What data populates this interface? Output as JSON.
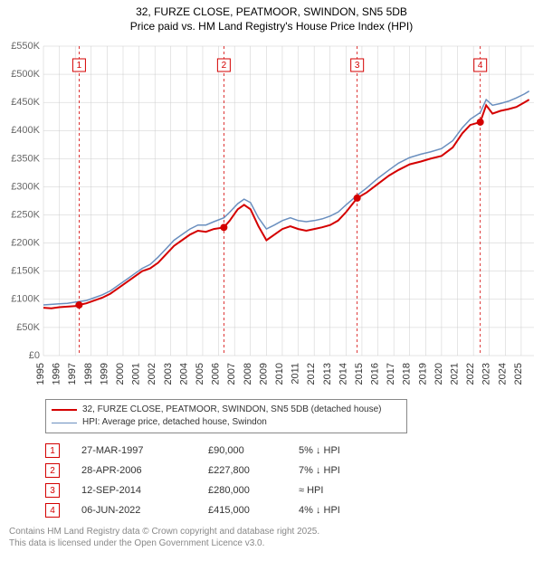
{
  "title_line1": "32, FURZE CLOSE, PEATMOOR, SWINDON, SN5 5DB",
  "title_line2": "Price paid vs. HM Land Registry's House Price Index (HPI)",
  "chart": {
    "type": "line",
    "background_color": "#ffffff",
    "grid_color": "#cccccc",
    "x_years": [
      1995,
      1996,
      1997,
      1998,
      1999,
      2000,
      2001,
      2002,
      2003,
      2004,
      2005,
      2006,
      2007,
      2008,
      2009,
      2010,
      2011,
      2012,
      2013,
      2014,
      2015,
      2016,
      2017,
      2018,
      2019,
      2020,
      2021,
      2022,
      2023,
      2024,
      2025
    ],
    "xlim": [
      1995,
      2025.8
    ],
    "ylim": [
      0,
      550000
    ],
    "ytick_step": 50000,
    "ytick_labels": [
      "£0",
      "£50K",
      "£100K",
      "£150K",
      "£200K",
      "£250K",
      "£300K",
      "£350K",
      "£400K",
      "£450K",
      "£500K",
      "£550K"
    ],
    "x_label_fontsize": 11,
    "y_label_fontsize": 11,
    "title_fontsize": 12,
    "series_a": {
      "name": "32, FURZE CLOSE, PEATMOOR, SWINDON, SN5 5DB (detached house)",
      "color": "#d40000",
      "width": 2,
      "points": [
        [
          1995.0,
          85000
        ],
        [
          1995.5,
          84000
        ],
        [
          1996.0,
          86000
        ],
        [
          1996.5,
          87000
        ],
        [
          1997.0,
          88000
        ],
        [
          1997.24,
          90000
        ],
        [
          1997.7,
          93000
        ],
        [
          1998.2,
          98000
        ],
        [
          1998.7,
          103000
        ],
        [
          1999.2,
          110000
        ],
        [
          1999.7,
          120000
        ],
        [
          2000.2,
          130000
        ],
        [
          2000.7,
          140000
        ],
        [
          2001.2,
          150000
        ],
        [
          2001.7,
          155000
        ],
        [
          2002.2,
          165000
        ],
        [
          2002.7,
          180000
        ],
        [
          2003.2,
          195000
        ],
        [
          2003.7,
          205000
        ],
        [
          2004.2,
          215000
        ],
        [
          2004.7,
          222000
        ],
        [
          2005.2,
          220000
        ],
        [
          2005.7,
          225000
        ],
        [
          2006.33,
          227800
        ],
        [
          2006.7,
          240000
        ],
        [
          2007.2,
          260000
        ],
        [
          2007.6,
          268000
        ],
        [
          2008.0,
          260000
        ],
        [
          2008.5,
          230000
        ],
        [
          2009.0,
          205000
        ],
        [
          2009.5,
          215000
        ],
        [
          2010.0,
          225000
        ],
        [
          2010.5,
          230000
        ],
        [
          2011.0,
          225000
        ],
        [
          2011.5,
          222000
        ],
        [
          2012.0,
          225000
        ],
        [
          2012.5,
          228000
        ],
        [
          2013.0,
          232000
        ],
        [
          2013.5,
          240000
        ],
        [
          2014.0,
          255000
        ],
        [
          2014.7,
          280000
        ],
        [
          2015.3,
          290000
        ],
        [
          2016.0,
          305000
        ],
        [
          2016.7,
          320000
        ],
        [
          2017.3,
          330000
        ],
        [
          2018.0,
          340000
        ],
        [
          2018.7,
          345000
        ],
        [
          2019.3,
          350000
        ],
        [
          2020.0,
          355000
        ],
        [
          2020.7,
          370000
        ],
        [
          2021.3,
          395000
        ],
        [
          2021.8,
          410000
        ],
        [
          2022.43,
          415000
        ],
        [
          2022.8,
          445000
        ],
        [
          2023.2,
          430000
        ],
        [
          2023.7,
          435000
        ],
        [
          2024.2,
          438000
        ],
        [
          2024.7,
          442000
        ],
        [
          2025.2,
          450000
        ],
        [
          2025.5,
          455000
        ]
      ]
    },
    "series_b": {
      "name": "HPI: Average price, detached house, Swindon",
      "color": "#6a8fbf",
      "width": 1.5,
      "points": [
        [
          1995.0,
          90000
        ],
        [
          1995.5,
          91000
        ],
        [
          1996.0,
          92000
        ],
        [
          1996.5,
          93000
        ],
        [
          1997.0,
          95000
        ],
        [
          1997.7,
          98000
        ],
        [
          1998.2,
          103000
        ],
        [
          1998.7,
          108000
        ],
        [
          1999.2,
          115000
        ],
        [
          1999.7,
          125000
        ],
        [
          2000.2,
          135000
        ],
        [
          2000.7,
          145000
        ],
        [
          2001.2,
          155000
        ],
        [
          2001.7,
          162000
        ],
        [
          2002.2,
          175000
        ],
        [
          2002.7,
          190000
        ],
        [
          2003.2,
          205000
        ],
        [
          2003.7,
          215000
        ],
        [
          2004.2,
          225000
        ],
        [
          2004.7,
          232000
        ],
        [
          2005.2,
          232000
        ],
        [
          2005.7,
          238000
        ],
        [
          2006.33,
          245000
        ],
        [
          2006.7,
          255000
        ],
        [
          2007.2,
          270000
        ],
        [
          2007.6,
          278000
        ],
        [
          2008.0,
          272000
        ],
        [
          2008.5,
          245000
        ],
        [
          2009.0,
          225000
        ],
        [
          2009.5,
          232000
        ],
        [
          2010.0,
          240000
        ],
        [
          2010.5,
          245000
        ],
        [
          2011.0,
          240000
        ],
        [
          2011.5,
          238000
        ],
        [
          2012.0,
          240000
        ],
        [
          2012.5,
          243000
        ],
        [
          2013.0,
          248000
        ],
        [
          2013.5,
          255000
        ],
        [
          2014.0,
          268000
        ],
        [
          2014.7,
          285000
        ],
        [
          2015.3,
          298000
        ],
        [
          2016.0,
          315000
        ],
        [
          2016.7,
          330000
        ],
        [
          2017.3,
          342000
        ],
        [
          2018.0,
          352000
        ],
        [
          2018.7,
          358000
        ],
        [
          2019.3,
          362000
        ],
        [
          2020.0,
          368000
        ],
        [
          2020.7,
          382000
        ],
        [
          2021.3,
          405000
        ],
        [
          2021.8,
          420000
        ],
        [
          2022.43,
          432000
        ],
        [
          2022.8,
          455000
        ],
        [
          2023.2,
          445000
        ],
        [
          2023.7,
          448000
        ],
        [
          2024.2,
          452000
        ],
        [
          2024.7,
          458000
        ],
        [
          2025.2,
          465000
        ],
        [
          2025.5,
          470000
        ]
      ]
    },
    "sales": [
      {
        "idx": "1",
        "x": 1997.24,
        "date": "27-MAR-1997",
        "price_val": 90000,
        "price": "£90,000",
        "delta": "5% ↓ HPI"
      },
      {
        "idx": "2",
        "x": 2006.33,
        "date": "28-APR-2006",
        "price_val": 227800,
        "price": "£227,800",
        "delta": "7% ↓ HPI"
      },
      {
        "idx": "3",
        "x": 2014.7,
        "date": "12-SEP-2014",
        "price_val": 280000,
        "price": "£280,000",
        "delta": "≈ HPI"
      },
      {
        "idx": "4",
        "x": 2022.43,
        "date": "06-JUN-2022",
        "price_val": 415000,
        "price": "£415,000",
        "delta": "4% ↓ HPI"
      }
    ],
    "marker_style": {
      "box_size": 14,
      "stroke": "#d40000",
      "fill": "#ffffff",
      "fontsize": 10
    },
    "sale_dot": {
      "radius": 4,
      "color": "#d40000"
    },
    "vref_style": {
      "color": "#d40000",
      "dash": "3 3",
      "width": 0.8
    }
  },
  "legend": {
    "series_a_label": "32, FURZE CLOSE, PEATMOOR, SWINDON, SN5 5DB (detached house)",
    "series_b_label": "HPI: Average price, detached house, Swindon"
  },
  "footer_line1": "Contains HM Land Registry data © Crown copyright and database right 2025.",
  "footer_line2": "This data is licensed under the Open Government Licence v3.0."
}
